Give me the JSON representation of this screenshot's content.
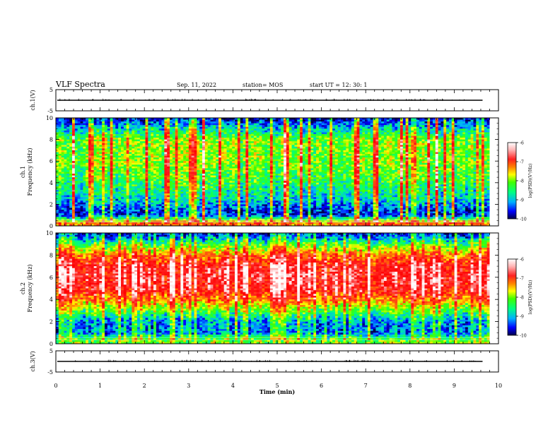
{
  "header": {
    "title": "VLF Spectra",
    "date": "Sep. 11, 2022",
    "station": "station= MOS",
    "start_ut": "start  UT =   12: 30: 1"
  },
  "colors": {
    "colormap": [
      "#00004a",
      "#0000ff",
      "#00b0ff",
      "#00ff80",
      "#40ff00",
      "#ffff00",
      "#ff8000",
      "#ff2020",
      "#ff0000",
      "#ffe0e0",
      "#ffffff"
    ],
    "waveform": "#000000",
    "axes": "#000000"
  },
  "chart_data": [
    {
      "type": "line",
      "panel": "ch1-waveform",
      "ylabel": "ch.1(V)",
      "ylim": [
        -5,
        5
      ],
      "yticks": [
        "5",
        "-5"
      ],
      "xlim": [
        0,
        10
      ],
      "series": [
        {
          "values_description_level": 0
        }
      ]
    },
    {
      "type": "heatmap",
      "panel": "ch1-spectrogram",
      "ylabel": "ch.1\nFrequency (kHz)",
      "ylabel_line1": "ch.1",
      "ylabel_line2": "Frequency (kHz)",
      "ylim": [
        0,
        10
      ],
      "yticks": [
        "0",
        "2",
        "4",
        "6",
        "8",
        "10"
      ],
      "xlim": [
        0,
        9.8
      ],
      "colorbar": {
        "label": "log(PSD)(V²/Hz)",
        "range": [
          -10,
          -6
        ],
        "ticks": [
          "-6",
          "-7",
          "-8",
          "-9",
          "-10"
        ]
      },
      "dominant_level_by_freq_khz": [
        [
          0.3,
          -7.5
        ],
        [
          1.0,
          -9.6
        ],
        [
          1.5,
          -9.5
        ],
        [
          2.5,
          -9.0
        ],
        [
          4,
          -8.6
        ],
        [
          6,
          -8.3
        ],
        [
          8,
          -8.3
        ],
        [
          9.5,
          -9.4
        ],
        [
          10,
          -9.8
        ]
      ]
    },
    {
      "type": "heatmap",
      "panel": "ch2-spectrogram",
      "ylabel_line1": "ch.2",
      "ylabel_line2": "Frequency (kHz)",
      "ylim": [
        0,
        10
      ],
      "yticks": [
        "0",
        "2",
        "4",
        "6",
        "8",
        "10"
      ],
      "xlim": [
        0,
        9.8
      ],
      "colorbar": {
        "label": "log(PSD)(V²/Hz)",
        "range": [
          -10,
          -6
        ],
        "ticks": [
          "-6",
          "-7",
          "-8",
          "-9",
          "-10"
        ]
      },
      "dominant_level_by_freq_khz": [
        [
          0.3,
          -8.3
        ],
        [
          1.0,
          -9.4
        ],
        [
          2.0,
          -9.3
        ],
        [
          3.0,
          -8.5
        ],
        [
          4.0,
          -7.6
        ],
        [
          5,
          -7.0
        ],
        [
          6,
          -6.9
        ],
        [
          7,
          -7.0
        ],
        [
          8,
          -7.6
        ],
        [
          9,
          -8.6
        ],
        [
          9.8,
          -9.6
        ]
      ]
    },
    {
      "type": "line",
      "panel": "ch3-waveform",
      "ylabel": "ch.3(V)",
      "ylim": [
        -5,
        5
      ],
      "yticks": [
        "5",
        "-5"
      ],
      "xlim": [
        0,
        10
      ],
      "series": [
        {
          "values_description_level": 0
        }
      ]
    }
  ],
  "xaxis": {
    "label": "Time (min)",
    "ticks": [
      "0",
      "1",
      "2",
      "3",
      "4",
      "5",
      "6",
      "7",
      "8",
      "9",
      "10"
    ],
    "range": [
      0,
      10
    ]
  }
}
